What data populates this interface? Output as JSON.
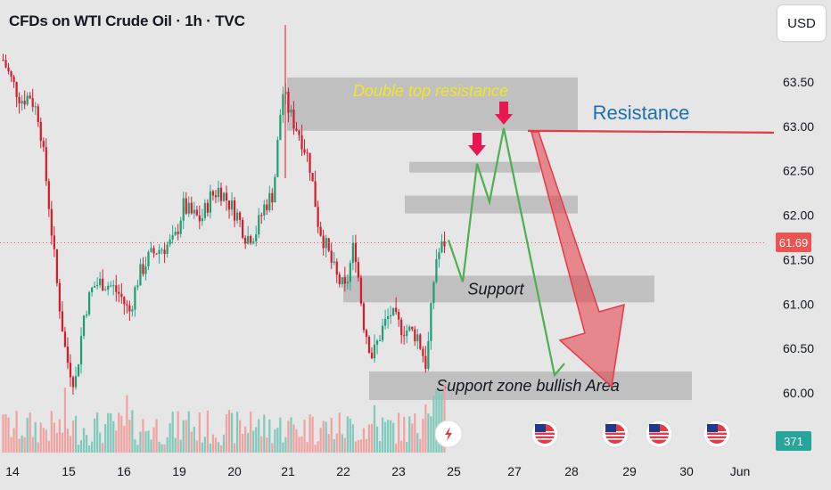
{
  "header": {
    "title": "CFDs on WTI Crude Oil · 1h · TVC"
  },
  "toolbar": {
    "currency_label": "USD"
  },
  "colors": {
    "up": "#26a69a",
    "down": "#ef5350",
    "path": "#4caf50",
    "resistance_line": "#e53945",
    "resistance_text": "#1f6fb2",
    "arrow": "#e53945"
  },
  "chart_data": {
    "type": "candlestick",
    "ylim": [
      59.6,
      64.0
    ],
    "y_ticks": [
      60.0,
      60.5,
      61.0,
      61.5,
      62.0,
      62.5,
      63.0,
      63.5
    ],
    "y_tick_labels": [
      "60.00",
      "60.50",
      "61.00",
      "61.50",
      "62.00",
      "62.50",
      "63.00",
      "63.50"
    ],
    "x_tick_labels": [
      "14",
      "15",
      "16",
      "19",
      "20",
      "21",
      "22",
      "23",
      "25",
      "27",
      "28",
      "29",
      "30",
      "Jun"
    ],
    "last_price": 61.69,
    "last_price_label": "61.69",
    "volume_label": "371",
    "close_path": [
      63.75,
      63.5,
      63.3,
      63.35,
      63.1,
      62.2,
      61.2,
      60.4,
      60.1,
      60.9,
      61.2,
      61.25,
      61.2,
      61.1,
      60.9,
      61.3,
      61.5,
      61.6,
      61.65,
      61.7,
      62.1,
      62.0,
      61.95,
      62.2,
      62.3,
      62.15,
      62.0,
      61.75,
      61.8,
      62.1,
      62.25,
      63.4,
      63.1,
      62.9,
      62.6,
      61.9,
      61.6,
      61.3,
      61.15,
      61.7,
      60.8,
      60.4,
      60.7,
      60.9,
      60.75,
      60.7,
      60.65,
      60.3,
      61.5,
      61.7
    ],
    "zones": [
      {
        "name": "double-top-zone",
        "label": "Double top resistance",
        "y0": 62.95,
        "y1": 63.55
      },
      {
        "name": "upper-small-zone",
        "label": "",
        "y0": 62.48,
        "y1": 62.6
      },
      {
        "name": "mid-zone",
        "label": "",
        "y0": 62.02,
        "y1": 62.22
      },
      {
        "name": "support-zone",
        "label": "Support",
        "y0": 61.02,
        "y1": 61.32
      },
      {
        "name": "bullish-zone",
        "label": "Support zone bullish Area",
        "y0": 59.92,
        "y1": 60.24
      }
    ],
    "resistance": {
      "label": "Resistance",
      "y": 62.95
    },
    "projected_path": [
      61.72,
      61.25,
      62.58,
      62.15,
      62.98,
      60.2,
      60.33
    ]
  }
}
